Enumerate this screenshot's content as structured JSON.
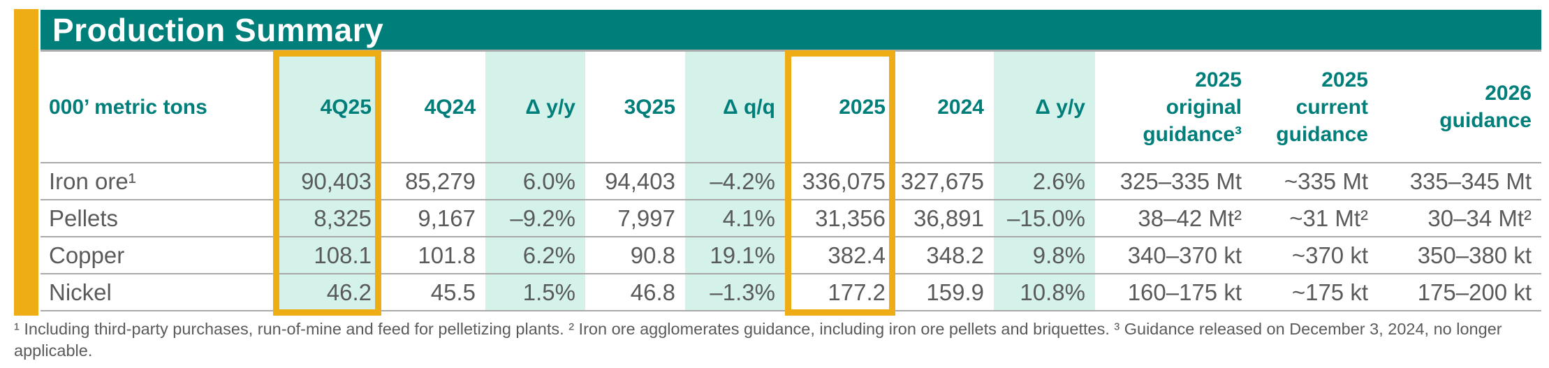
{
  "colors": {
    "teal": "#007E7A",
    "gold": "#EEAD14",
    "mint": "#D4F1EA",
    "text": "#595A5C",
    "line": "#A9A9A9"
  },
  "title": "Production Summary",
  "table": {
    "unit_label": "000’ metric tons",
    "columns": [
      "4Q25",
      "4Q24",
      "Δ y/y",
      "3Q25",
      "Δ q/q",
      "2025",
      "2024",
      "Δ y/y",
      "2025\noriginal\nguidance³",
      "2025\ncurrent\nguidance",
      "2026\nguidance"
    ],
    "rows": [
      {
        "label": "Iron ore¹",
        "values": [
          "90,403",
          "85,279",
          "6.0%",
          "94,403",
          "–4.2%",
          "336,075",
          "327,675",
          "2.6%",
          "325–335 Mt",
          "~335 Mt",
          "335–345 Mt"
        ]
      },
      {
        "label": "Pellets",
        "values": [
          "8,325",
          "9,167",
          "–9.2%",
          "7,997",
          "4.1%",
          "31,356",
          "36,891",
          "–15.0%",
          "38–42 Mt²",
          "~31 Mt²",
          "30–34 Mt²"
        ]
      },
      {
        "label": "Copper",
        "values": [
          "108.1",
          "101.8",
          "6.2%",
          "90.8",
          "19.1%",
          "382.4",
          "348.2",
          "9.8%",
          "340–370 kt",
          "~370 kt",
          "350–380 kt"
        ]
      },
      {
        "label": "Nickel",
        "values": [
          "46.2",
          "45.5",
          "1.5%",
          "46.8",
          "–1.3%",
          "177.2",
          "159.9",
          "10.8%",
          "160–175 kt",
          "~175 kt",
          "175–200 kt"
        ]
      }
    ]
  },
  "footnote": "¹ Including third-party purchases, run-of-mine and feed for pelletizing plants. ² Iron ore agglomerates guidance, including iron ore pellets and briquettes. ³ Guidance released on December 3, 2024, no longer applicable."
}
